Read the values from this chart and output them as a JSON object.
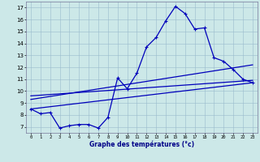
{
  "xlabel": "Graphe des températures (°c)",
  "bg_color": "#cce8e8",
  "line_color": "#0000bb",
  "grid_color": "#99bbcc",
  "yticks": [
    7,
    8,
    9,
    10,
    11,
    12,
    13,
    14,
    15,
    16,
    17
  ],
  "xticks": [
    0,
    1,
    2,
    3,
    4,
    5,
    6,
    7,
    8,
    9,
    10,
    11,
    12,
    13,
    14,
    15,
    16,
    17,
    18,
    19,
    20,
    21,
    22,
    23
  ],
  "ylim": [
    6.5,
    17.5
  ],
  "xlim": [
    -0.5,
    23.5
  ],
  "temp_curve_x": [
    0,
    1,
    2,
    3,
    4,
    5,
    6,
    7,
    8,
    9,
    10,
    11,
    12,
    13,
    14,
    15,
    16,
    17,
    18,
    19,
    20,
    21,
    22,
    23
  ],
  "temp_curve_y": [
    8.5,
    8.1,
    8.2,
    6.9,
    7.1,
    7.2,
    7.2,
    6.9,
    7.8,
    11.1,
    10.2,
    11.5,
    13.7,
    14.5,
    15.9,
    17.1,
    16.5,
    15.2,
    15.3,
    12.8,
    12.5,
    11.8,
    11.0,
    10.7
  ],
  "trend_low_y0": 8.5,
  "trend_low_y1": 10.7,
  "trend_mid_y0": 9.3,
  "trend_mid_y1": 12.2,
  "trend_hi_y0": 9.6,
  "trend_hi_y1": 10.9
}
